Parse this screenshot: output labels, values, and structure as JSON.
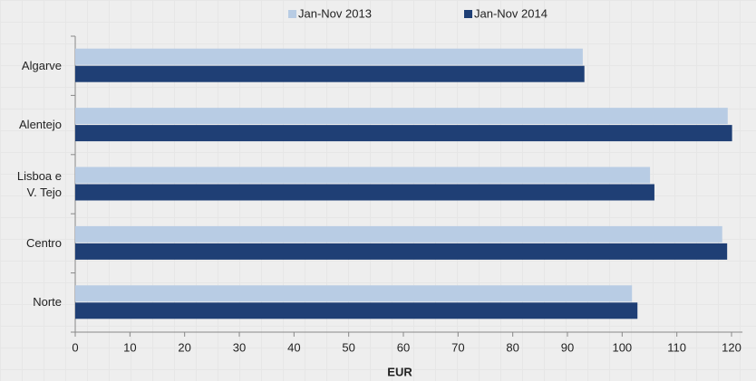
{
  "chart_data": {
    "type": "barh",
    "categories": [
      "Algarve",
      "Alentejo",
      "Lisboa e V. Tejo",
      "Centro",
      "Norte"
    ],
    "series": [
      {
        "name": "Jan-Nov 2013",
        "color": "#b8cce4",
        "values": [
          92.8,
          119.3,
          105.1,
          118.3,
          101.8
        ]
      },
      {
        "name": "Jan-Nov 2014",
        "color": "#1f3f75",
        "values": [
          93.1,
          120.1,
          105.9,
          119.2,
          102.8
        ]
      }
    ],
    "xlabel": "EUR",
    "xlim": [
      0,
      122
    ],
    "xticks": [
      0,
      10,
      20,
      30,
      40,
      50,
      60,
      70,
      80,
      90,
      100,
      110,
      120
    ],
    "legend": "top"
  }
}
